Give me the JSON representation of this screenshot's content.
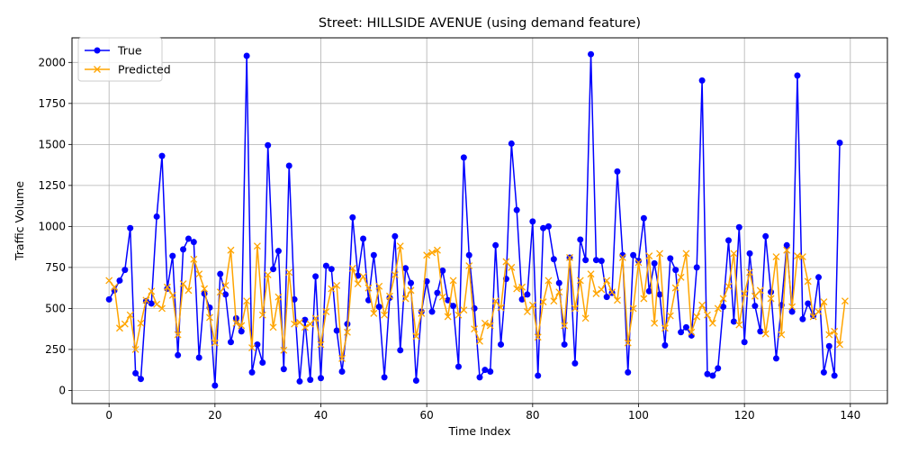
{
  "chart_data": {
    "type": "line",
    "title": "Street: HILLSIDE AVENUE (using demand feature)",
    "xlabel": "Time Index",
    "ylabel": "Traffic Volume",
    "xlim": [
      -7,
      147
    ],
    "ylim": [
      -80,
      2150
    ],
    "xticks": [
      0,
      20,
      40,
      60,
      80,
      100,
      120,
      140
    ],
    "yticks": [
      0,
      250,
      500,
      750,
      1000,
      1250,
      1500,
      1750,
      2000
    ],
    "grid": true,
    "legend_position": "top-left",
    "series": [
      {
        "name": "True",
        "color": "#0000ff",
        "marker": "circle",
        "values": [
          555,
          610,
          670,
          735,
          990,
          105,
          70,
          545,
          530,
          1060,
          1430,
          620,
          820,
          215,
          860,
          925,
          905,
          200,
          590,
          505,
          30,
          710,
          585,
          295,
          440,
          360,
          2040,
          110,
          280,
          170,
          1495,
          740,
          850,
          130,
          1370,
          555,
          55,
          430,
          65,
          695,
          75,
          760,
          740,
          365,
          115,
          405,
          1055,
          700,
          925,
          550,
          825,
          510,
          80,
          565,
          940,
          245,
          745,
          655,
          60,
          480,
          665,
          480,
          595,
          730,
          550,
          515,
          145,
          1420,
          825,
          500,
          80,
          125,
          115,
          885,
          280,
          680,
          1505,
          1100,
          555,
          585,
          1030,
          90,
          990,
          1000,
          800,
          655,
          280,
          810,
          165,
          920,
          795,
          2050,
          795,
          790,
          570,
          595,
          1335,
          825,
          110,
          825,
          790,
          1050,
          605,
          775,
          585,
          275,
          805,
          735,
          355,
          385,
          335,
          750,
          1890,
          100,
          90,
          135,
          510,
          915,
          420,
          995,
          295,
          835,
          515,
          360,
          940,
          600,
          195,
          520,
          885,
          480,
          1920,
          435,
          530,
          455,
          690,
          110,
          270,
          90,
          1510
        ]
      },
      {
        "name": "Predicted",
        "color": "#ffa500",
        "marker": "x",
        "values": [
          670,
          630,
          380,
          405,
          460,
          250,
          410,
          550,
          605,
          525,
          500,
          630,
          580,
          340,
          650,
          610,
          800,
          710,
          620,
          445,
          290,
          600,
          640,
          855,
          410,
          395,
          545,
          260,
          880,
          460,
          705,
          385,
          570,
          245,
          720,
          405,
          415,
          385,
          405,
          440,
          280,
          480,
          620,
          640,
          195,
          355,
          745,
          650,
          695,
          625,
          470,
          635,
          460,
          575,
          705,
          880,
          560,
          610,
          330,
          470,
          825,
          840,
          855,
          570,
          450,
          670,
          460,
          490,
          760,
          375,
          300,
          410,
          395,
          545,
          505,
          785,
          750,
          620,
          630,
          480,
          520,
          325,
          540,
          670,
          545,
          600,
          395,
          810,
          500,
          670,
          440,
          710,
          590,
          615,
          670,
          600,
          550,
          810,
          290,
          500,
          780,
          560,
          820,
          410,
          835,
          380,
          455,
          625,
          690,
          835,
          355,
          450,
          520,
          460,
          410,
          500,
          560,
          635,
          835,
          400,
          590,
          720,
          575,
          610,
          345,
          560,
          815,
          340,
          855,
          510,
          820,
          815,
          665,
          450,
          480,
          540,
          340,
          360,
          280,
          545
        ]
      }
    ]
  }
}
